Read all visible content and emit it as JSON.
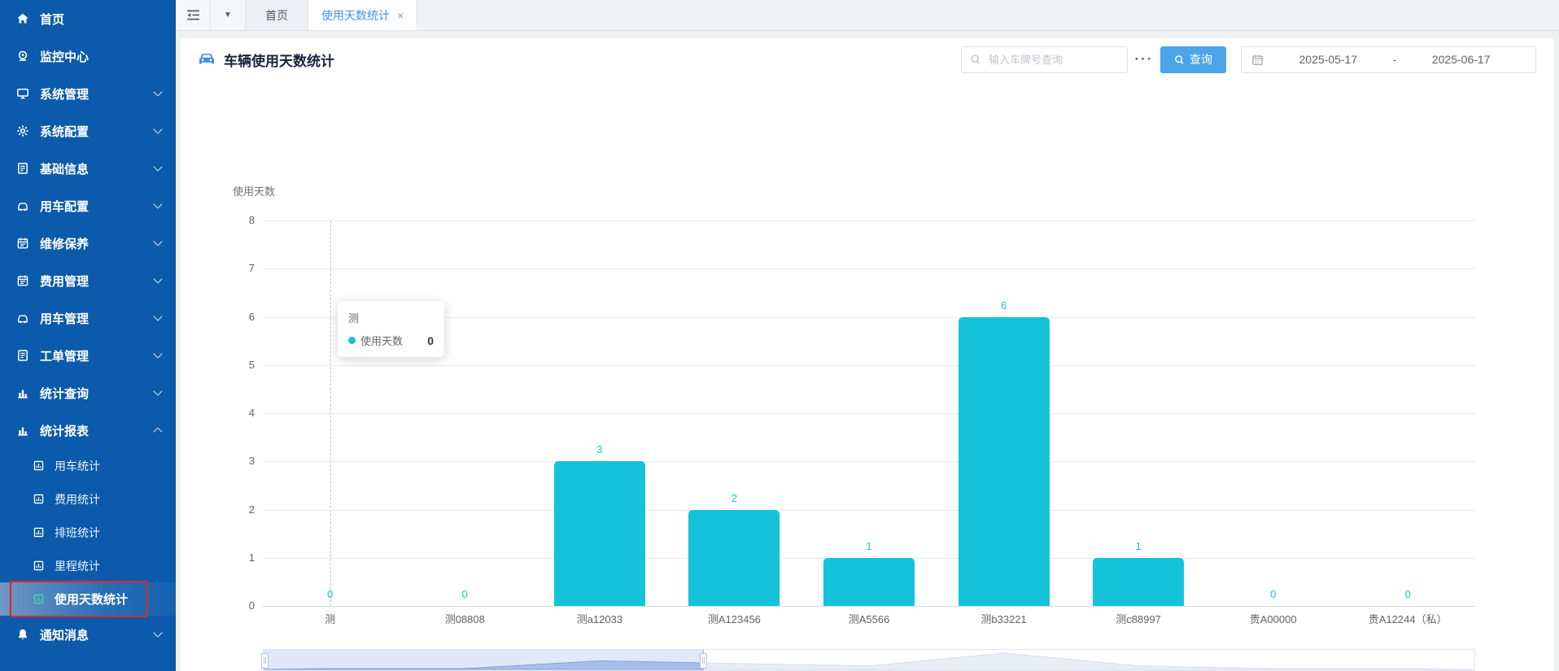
{
  "app": {
    "accent_blue": "#3f91e6",
    "sidebar_blue": "#0b5aab",
    "bar_cyan": "#14c3da",
    "highlight_red": "#e12727",
    "active_icon_teal": "#39dcae"
  },
  "sidebar": {
    "items": [
      {
        "id": "home",
        "icon": "home",
        "label": "首页",
        "expandable": false
      },
      {
        "id": "monitor-center",
        "icon": "monitor",
        "label": "监控中心",
        "expandable": false
      },
      {
        "id": "system-mgmt",
        "icon": "display",
        "label": "系统管理",
        "expandable": true
      },
      {
        "id": "system-config",
        "icon": "gear",
        "label": "系统配置",
        "expandable": true
      },
      {
        "id": "base-info",
        "icon": "doc",
        "label": "基础信息",
        "expandable": true
      },
      {
        "id": "vehicle-config",
        "icon": "car",
        "label": "用车配置",
        "expandable": true
      },
      {
        "id": "maintenance",
        "icon": "calendar",
        "label": "维修保养",
        "expandable": true
      },
      {
        "id": "expense-mgmt",
        "icon": "calendar",
        "label": "费用管理",
        "expandable": true
      },
      {
        "id": "vehicle-mgmt",
        "icon": "car",
        "label": "用车管理",
        "expandable": true
      },
      {
        "id": "workorder-mgmt",
        "icon": "doc",
        "label": "工单管理",
        "expandable": true
      },
      {
        "id": "stat-query",
        "icon": "chart",
        "label": "统计查询",
        "expandable": true
      },
      {
        "id": "stat-report",
        "icon": "chart",
        "label": "统计报表",
        "expandable": true,
        "expanded": true,
        "children": [
          {
            "id": "vehicle-stat",
            "label": "用车统计",
            "active": false
          },
          {
            "id": "expense-stat",
            "label": "费用统计",
            "active": false
          },
          {
            "id": "schedule-stat",
            "label": "排班统计",
            "active": false
          },
          {
            "id": "mileage-stat",
            "label": "里程统计",
            "active": false
          },
          {
            "id": "usage-days-stat",
            "label": "使用天数统计",
            "active": true
          }
        ]
      },
      {
        "id": "notify",
        "icon": "bell",
        "label": "通知消息",
        "expandable": true
      }
    ]
  },
  "tabbar": {
    "tabs": [
      {
        "label": "首页",
        "active": false,
        "closable": false
      },
      {
        "label": "使用天数统计",
        "active": true,
        "closable": true
      }
    ],
    "close_glyph": "×",
    "caret_glyph": "▼"
  },
  "header": {
    "title": "车辆使用天数统计",
    "search_placeholder": "输入车牌号查询",
    "more_label": "···",
    "query_label": "查询",
    "date_start": "2025-05-17",
    "date_separator": "-",
    "date_end": "2025-06-17"
  },
  "tooltip": {
    "category": "测",
    "series": "使用天数",
    "value": "0"
  },
  "chart_data": {
    "type": "bar",
    "title": "车辆使用天数统计",
    "yAxisName": "使用天数",
    "series_name": "使用天数",
    "categories": [
      "测",
      "测08808",
      "测a12033",
      "测A123456",
      "测A5566",
      "测b33221",
      "测c88997",
      "贵A00000",
      "贵A12244（私）"
    ],
    "values": [
      0,
      0,
      3,
      2,
      1,
      6,
      1,
      0,
      0
    ],
    "xlabel": "",
    "ylabel": "使用天数",
    "ylim": [
      0,
      8
    ],
    "yticks": [
      8,
      7,
      6,
      5,
      4,
      3,
      2,
      1,
      0
    ],
    "grid": true,
    "legend_position": "none",
    "bar_color": "#14c3da",
    "value_label_color": "#1ec1d8",
    "crosshair_category": "测",
    "datazoom": {
      "start_pct": 0,
      "end_pct": 36.3
    }
  }
}
